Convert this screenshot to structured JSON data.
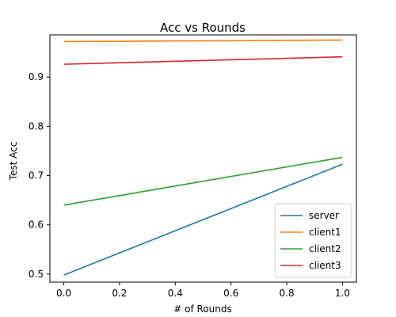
{
  "chart_data": {
    "type": "line",
    "title": "Acc vs Rounds",
    "xlabel": "# of Rounds",
    "ylabel": "Test Acc",
    "x": [
      0,
      1
    ],
    "xlim": [
      -0.05,
      1.05
    ],
    "ylim": [
      0.4837,
      0.9856
    ],
    "xticks": [
      0.0,
      0.2,
      0.4,
      0.6,
      0.8,
      1.0
    ],
    "xtick_labels": [
      "0.0",
      "0.2",
      "0.4",
      "0.6",
      "0.8",
      "1.0"
    ],
    "yticks": [
      0.5,
      0.6,
      0.7,
      0.8,
      0.9
    ],
    "ytick_labels": [
      "0.5",
      "0.6",
      "0.7",
      "0.8",
      "0.9"
    ],
    "grid": false,
    "legend_position": "lower right",
    "series": [
      {
        "name": "server",
        "color": "#1f77b4",
        "values": [
          0.498,
          0.723
        ]
      },
      {
        "name": "client1",
        "color": "#ff7f0e",
        "values": [
          0.972,
          0.975
        ]
      },
      {
        "name": "client2",
        "color": "#2ca02c",
        "values": [
          0.64,
          0.737
        ]
      },
      {
        "name": "client3",
        "color": "#d62728",
        "values": [
          0.926,
          0.941
        ]
      }
    ]
  }
}
